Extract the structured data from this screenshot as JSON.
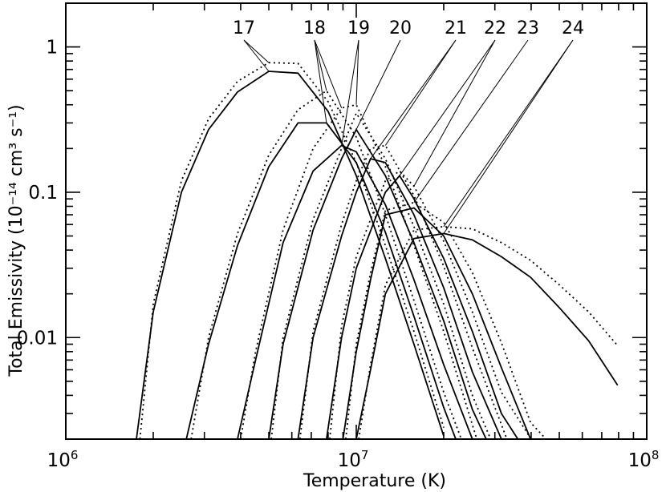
{
  "chart_data": {
    "type": "line",
    "xlabel": "Temperature (K)",
    "ylabel": "Total Emissivity (10⁻¹⁴ cm³ s⁻¹)",
    "x_scale": "log",
    "y_scale": "log",
    "xlim": [
      1000000,
      100000000
    ],
    "ylim": [
      0.002,
      2.0
    ],
    "x_ticks": [
      {
        "value": 1000000,
        "base": "10",
        "exp": "6"
      },
      {
        "value": 10000000,
        "base": "10",
        "exp": "7"
      },
      {
        "value": 100000000,
        "base": "10",
        "exp": "8"
      }
    ],
    "y_ticks": [
      {
        "value": 1,
        "label": "1"
      },
      {
        "value": 0.1,
        "label": "0.1"
      },
      {
        "value": 0.01,
        "label": "0.01"
      }
    ],
    "series": [
      {
        "name": "17",
        "style": "solid",
        "points": [
          [
            1750000,
            0.0015
          ],
          [
            2000000,
            0.015
          ],
          [
            2500000,
            0.1
          ],
          [
            3100000,
            0.27
          ],
          [
            3900000,
            0.49
          ],
          [
            5000000,
            0.68
          ],
          [
            6300000,
            0.66
          ],
          [
            8000000,
            0.36
          ],
          [
            10000000,
            0.13
          ],
          [
            12600000,
            0.035
          ],
          [
            15800000,
            0.009
          ],
          [
            20000000,
            0.0021
          ]
        ]
      },
      {
        "name": "17",
        "style": "dotted",
        "points": [
          [
            1800000,
            0.0015
          ],
          [
            2000000,
            0.017
          ],
          [
            2500000,
            0.12
          ],
          [
            3100000,
            0.32
          ],
          [
            3900000,
            0.58
          ],
          [
            5000000,
            0.78
          ],
          [
            6300000,
            0.77
          ],
          [
            8000000,
            0.42
          ],
          [
            10000000,
            0.16
          ],
          [
            12600000,
            0.043
          ],
          [
            15800000,
            0.011
          ],
          [
            20000000,
            0.0024
          ]
        ]
      },
      {
        "name": "18",
        "style": "solid",
        "points": [
          [
            2600000,
            0.0015
          ],
          [
            3100000,
            0.009
          ],
          [
            3900000,
            0.043
          ],
          [
            5000000,
            0.15
          ],
          [
            6300000,
            0.3
          ],
          [
            7900000,
            0.3
          ],
          [
            10000000,
            0.16
          ],
          [
            12600000,
            0.053
          ],
          [
            15800000,
            0.014
          ],
          [
            20000000,
            0.0033
          ],
          [
            22000000,
            0.0015
          ]
        ]
      },
      {
        "name": "18",
        "style": "dotted",
        "points": [
          [
            2700000,
            0.0015
          ],
          [
            3100000,
            0.01
          ],
          [
            3900000,
            0.052
          ],
          [
            5000000,
            0.18
          ],
          [
            6300000,
            0.37
          ],
          [
            7900000,
            0.5
          ],
          [
            10000000,
            0.24
          ],
          [
            12600000,
            0.07
          ],
          [
            15800000,
            0.018
          ],
          [
            20000000,
            0.0042
          ],
          [
            23000000,
            0.0015
          ]
        ]
      },
      {
        "name": "19",
        "style": "solid",
        "points": [
          [
            3900000,
            0.0015
          ],
          [
            4500000,
            0.007
          ],
          [
            5600000,
            0.045
          ],
          [
            7100000,
            0.14
          ],
          [
            8900000,
            0.21
          ],
          [
            10000000,
            0.19
          ],
          [
            12600000,
            0.082
          ],
          [
            15800000,
            0.025
          ],
          [
            20000000,
            0.0065
          ],
          [
            25100000,
            0.0015
          ]
        ]
      },
      {
        "name": "19",
        "style": "dotted",
        "points": [
          [
            4000000,
            0.0015
          ],
          [
            4500000,
            0.008
          ],
          [
            5600000,
            0.055
          ],
          [
            7100000,
            0.2
          ],
          [
            8900000,
            0.38
          ],
          [
            10000000,
            0.4
          ],
          [
            12600000,
            0.15
          ],
          [
            15800000,
            0.043
          ],
          [
            20000000,
            0.011
          ],
          [
            26000000,
            0.0015
          ]
        ]
      },
      {
        "name": "20",
        "style": "solid",
        "points": [
          [
            5000000,
            0.0015
          ],
          [
            5600000,
            0.009
          ],
          [
            7100000,
            0.055
          ],
          [
            8900000,
            0.17
          ],
          [
            10000000,
            0.27
          ],
          [
            12600000,
            0.13
          ],
          [
            15800000,
            0.045
          ],
          [
            20000000,
            0.013
          ],
          [
            25100000,
            0.0032
          ],
          [
            28000000,
            0.0015
          ]
        ]
      },
      {
        "name": "20",
        "style": "dotted",
        "points": [
          [
            5100000,
            0.0015
          ],
          [
            5600000,
            0.01
          ],
          [
            7100000,
            0.065
          ],
          [
            8900000,
            0.2
          ],
          [
            10000000,
            0.35
          ],
          [
            12600000,
            0.17
          ],
          [
            15800000,
            0.058
          ],
          [
            20000000,
            0.017
          ],
          [
            25100000,
            0.004
          ],
          [
            29000000,
            0.0015
          ]
        ]
      },
      {
        "name": "21",
        "style": "solid",
        "points": [
          [
            6300000,
            0.0015
          ],
          [
            7100000,
            0.01
          ],
          [
            8900000,
            0.05
          ],
          [
            10000000,
            0.1
          ],
          [
            11200000,
            0.17
          ],
          [
            12600000,
            0.16
          ],
          [
            15800000,
            0.07
          ],
          [
            20000000,
            0.022
          ],
          [
            25100000,
            0.0058
          ],
          [
            31600000,
            0.0015
          ]
        ]
      },
      {
        "name": "21",
        "style": "dotted",
        "points": [
          [
            6400000,
            0.0015
          ],
          [
            7100000,
            0.011
          ],
          [
            8900000,
            0.06
          ],
          [
            10000000,
            0.12
          ],
          [
            11200000,
            0.2
          ],
          [
            12600000,
            0.21
          ],
          [
            15800000,
            0.095
          ],
          [
            20000000,
            0.031
          ],
          [
            25100000,
            0.0085
          ],
          [
            33000000,
            0.0015
          ]
        ]
      },
      {
        "name": "22",
        "style": "solid",
        "points": [
          [
            7900000,
            0.0015
          ],
          [
            8900000,
            0.01
          ],
          [
            10000000,
            0.03
          ],
          [
            12600000,
            0.1
          ],
          [
            14100000,
            0.13
          ],
          [
            15800000,
            0.09
          ],
          [
            20000000,
            0.035
          ],
          [
            25100000,
            0.011
          ],
          [
            31600000,
            0.003
          ],
          [
            36000000,
            0.0015
          ]
        ]
      },
      {
        "name": "22",
        "style": "dotted",
        "points": [
          [
            8100000,
            0.0015
          ],
          [
            8900000,
            0.012
          ],
          [
            10000000,
            0.036
          ],
          [
            12600000,
            0.12
          ],
          [
            14100000,
            0.14
          ],
          [
            15800000,
            0.11
          ],
          [
            20000000,
            0.046
          ],
          [
            25100000,
            0.015
          ],
          [
            31600000,
            0.0042
          ],
          [
            40000000,
            0.0015
          ]
        ]
      },
      {
        "name": "23",
        "style": "solid",
        "points": [
          [
            9000000,
            0.0015
          ],
          [
            10000000,
            0.008
          ],
          [
            11200000,
            0.025
          ],
          [
            12600000,
            0.07
          ],
          [
            15800000,
            0.078
          ],
          [
            20000000,
            0.05
          ],
          [
            25100000,
            0.02
          ],
          [
            31600000,
            0.0062
          ],
          [
            39800000,
            0.0017
          ],
          [
            41000000,
            0.0015
          ]
        ]
      },
      {
        "name": "23",
        "style": "dotted",
        "points": [
          [
            9200000,
            0.0015
          ],
          [
            10000000,
            0.009
          ],
          [
            11200000,
            0.028
          ],
          [
            12600000,
            0.075
          ],
          [
            15800000,
            0.085
          ],
          [
            20000000,
            0.062
          ],
          [
            25100000,
            0.028
          ],
          [
            31600000,
            0.0092
          ],
          [
            39800000,
            0.0026
          ],
          [
            45000000,
            0.0015
          ]
        ]
      },
      {
        "name": "24",
        "style": "solid",
        "points": [
          [
            10000000,
            0.0015
          ],
          [
            11200000,
            0.006
          ],
          [
            12600000,
            0.02
          ],
          [
            15800000,
            0.048
          ],
          [
            20000000,
            0.052
          ],
          [
            25100000,
            0.047
          ],
          [
            31600000,
            0.036
          ],
          [
            39800000,
            0.026
          ],
          [
            50100000,
            0.016
          ],
          [
            63100000,
            0.0095
          ],
          [
            79400000,
            0.0047
          ]
        ]
      },
      {
        "name": "24",
        "style": "dotted",
        "points": [
          [
            10200000,
            0.0015
          ],
          [
            11200000,
            0.0065
          ],
          [
            12600000,
            0.023
          ],
          [
            15800000,
            0.055
          ],
          [
            20000000,
            0.058
          ],
          [
            25100000,
            0.056
          ],
          [
            31600000,
            0.045
          ],
          [
            39800000,
            0.034
          ],
          [
            50100000,
            0.023
          ],
          [
            63100000,
            0.015
          ],
          [
            79400000,
            0.0088
          ]
        ]
      }
    ],
    "annotations": [
      {
        "label": "17",
        "targets": [
          [
            5000000,
            0.68
          ],
          [
            5000000,
            0.78
          ]
        ]
      },
      {
        "label": "18",
        "targets": [
          [
            7900000,
            0.3
          ],
          [
            7900000,
            0.5
          ],
          [
            8900000,
            0.38
          ]
        ]
      },
      {
        "label": "19",
        "targets": [
          [
            8900000,
            0.21
          ],
          [
            10000000,
            0.4
          ]
        ]
      },
      {
        "label": "20",
        "targets": [
          [
            10000000,
            0.27
          ]
        ]
      },
      {
        "label": "21",
        "targets": [
          [
            11200000,
            0.17
          ],
          [
            12600000,
            0.21
          ]
        ]
      },
      {
        "label": "22",
        "targets": [
          [
            14100000,
            0.13
          ],
          [
            15800000,
            0.11
          ]
        ]
      },
      {
        "label": "23",
        "targets": [
          [
            15800000,
            0.085
          ]
        ]
      },
      {
        "label": "24",
        "targets": [
          [
            20000000,
            0.052
          ],
          [
            20000000,
            0.058
          ]
        ]
      }
    ],
    "grid": false,
    "legend": "none"
  }
}
